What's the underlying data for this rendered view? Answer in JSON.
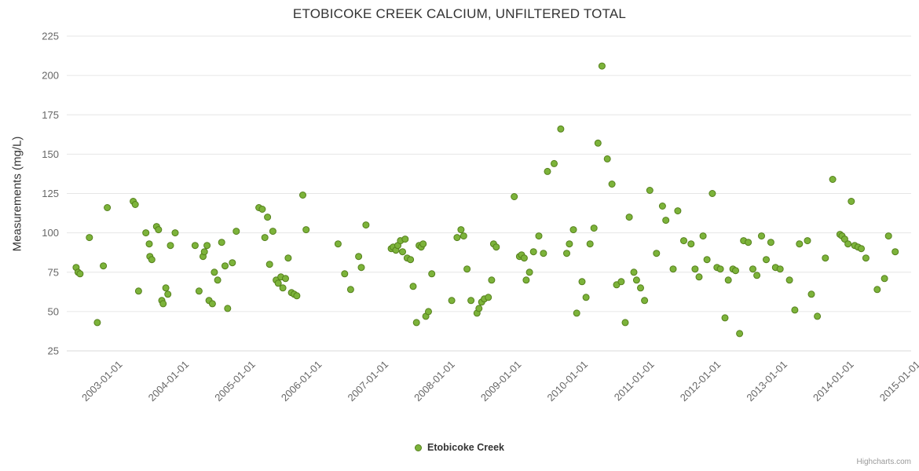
{
  "title": "ETOBICOKE CREEK CALCIUM, UNFILTERED TOTAL",
  "legend": {
    "label": "Etobicoke Creek",
    "marker_color": "#7cb33a",
    "marker_stroke": "#55801c"
  },
  "credits": "Highcharts.com",
  "colors": {
    "title": "#333333",
    "axis_label": "#666666",
    "gridline": "#e6e6e6",
    "axis_line": "#d8d8d8",
    "point_fill": "#7cb33a",
    "point_stroke": "#55801c"
  },
  "chart_data": {
    "type": "scatter",
    "title": "ETOBICOKE CREEK CALCIUM, UNFILTERED TOTAL",
    "xlabel": "",
    "ylabel": "Measurements (mg/L)",
    "ylim": [
      25,
      225
    ],
    "xlim": [
      2002.25,
      2014.95
    ],
    "grid": true,
    "legend_position": "bottom-center",
    "y_ticks": [
      225,
      200,
      175,
      150,
      125,
      100,
      75,
      50,
      25
    ],
    "x_tick_values": [
      2003,
      2004,
      2005,
      2006,
      2007,
      2008,
      2009,
      2010,
      2011,
      2012,
      2013,
      2014,
      2015
    ],
    "x_tick_labels": [
      "2003-01-01",
      "2004-01-01",
      "2005-01-01",
      "2006-01-01",
      "2007-01-01",
      "2008-01-01",
      "2009-01-01",
      "2010-01-01",
      "2011-01-01",
      "2012-01-01",
      "2013-01-01",
      "2014-01-01",
      "2015-01-01"
    ],
    "series": [
      {
        "name": "Etobicoke Creek",
        "color": "#7cb33a",
        "stroke": "#55801c",
        "points": [
          [
            2002.39,
            78
          ],
          [
            2002.42,
            75
          ],
          [
            2002.45,
            74
          ],
          [
            2002.59,
            97
          ],
          [
            2002.71,
            43
          ],
          [
            2002.8,
            79
          ],
          [
            2002.86,
            116
          ],
          [
            2003.25,
            120
          ],
          [
            2003.28,
            118
          ],
          [
            2003.33,
            63
          ],
          [
            2003.44,
            100
          ],
          [
            2003.49,
            93
          ],
          [
            2003.5,
            85
          ],
          [
            2003.53,
            83
          ],
          [
            2003.6,
            104
          ],
          [
            2003.63,
            102
          ],
          [
            2003.68,
            57
          ],
          [
            2003.7,
            55
          ],
          [
            2003.74,
            65
          ],
          [
            2003.77,
            61
          ],
          [
            2003.81,
            92
          ],
          [
            2003.88,
            100
          ],
          [
            2004.18,
            92
          ],
          [
            2004.24,
            63
          ],
          [
            2004.3,
            85
          ],
          [
            2004.32,
            88
          ],
          [
            2004.36,
            92
          ],
          [
            2004.39,
            57
          ],
          [
            2004.44,
            55
          ],
          [
            2004.47,
            75
          ],
          [
            2004.52,
            70
          ],
          [
            2004.58,
            94
          ],
          [
            2004.63,
            79
          ],
          [
            2004.67,
            52
          ],
          [
            2004.74,
            81
          ],
          [
            2004.8,
            101
          ],
          [
            2005.14,
            116
          ],
          [
            2005.19,
            115
          ],
          [
            2005.23,
            97
          ],
          [
            2005.27,
            110
          ],
          [
            2005.3,
            80
          ],
          [
            2005.35,
            101
          ],
          [
            2005.4,
            70
          ],
          [
            2005.43,
            68
          ],
          [
            2005.47,
            72
          ],
          [
            2005.5,
            65
          ],
          [
            2005.54,
            71
          ],
          [
            2005.58,
            84
          ],
          [
            2005.63,
            62
          ],
          [
            2005.67,
            61
          ],
          [
            2005.71,
            60
          ],
          [
            2005.8,
            124
          ],
          [
            2005.85,
            102
          ],
          [
            2006.33,
            93
          ],
          [
            2006.43,
            74
          ],
          [
            2006.52,
            64
          ],
          [
            2006.64,
            85
          ],
          [
            2006.68,
            78
          ],
          [
            2006.75,
            105
          ],
          [
            2007.13,
            90
          ],
          [
            2007.16,
            91
          ],
          [
            2007.2,
            89
          ],
          [
            2007.23,
            92
          ],
          [
            2007.27,
            95
          ],
          [
            2007.3,
            88
          ],
          [
            2007.34,
            96
          ],
          [
            2007.37,
            84
          ],
          [
            2007.42,
            83
          ],
          [
            2007.46,
            66
          ],
          [
            2007.51,
            43
          ],
          [
            2007.55,
            92
          ],
          [
            2007.58,
            91
          ],
          [
            2007.61,
            93
          ],
          [
            2007.65,
            47
          ],
          [
            2007.69,
            50
          ],
          [
            2007.74,
            74
          ],
          [
            2008.04,
            57
          ],
          [
            2008.12,
            97
          ],
          [
            2008.18,
            102
          ],
          [
            2008.22,
            98
          ],
          [
            2008.27,
            77
          ],
          [
            2008.33,
            57
          ],
          [
            2008.42,
            49
          ],
          [
            2008.45,
            52
          ],
          [
            2008.49,
            56
          ],
          [
            2008.53,
            58
          ],
          [
            2008.59,
            59
          ],
          [
            2008.64,
            70
          ],
          [
            2008.67,
            93
          ],
          [
            2008.71,
            91
          ],
          [
            2008.98,
            123
          ],
          [
            2009.06,
            85
          ],
          [
            2009.09,
            86
          ],
          [
            2009.13,
            84
          ],
          [
            2009.16,
            70
          ],
          [
            2009.21,
            75
          ],
          [
            2009.27,
            88
          ],
          [
            2009.35,
            98
          ],
          [
            2009.42,
            87
          ],
          [
            2009.48,
            139
          ],
          [
            2009.58,
            144
          ],
          [
            2009.68,
            166
          ],
          [
            2009.77,
            87
          ],
          [
            2009.81,
            93
          ],
          [
            2009.87,
            102
          ],
          [
            2009.92,
            49
          ],
          [
            2010.0,
            69
          ],
          [
            2010.06,
            59
          ],
          [
            2010.12,
            93
          ],
          [
            2010.18,
            103
          ],
          [
            2010.24,
            157
          ],
          [
            2010.3,
            206
          ],
          [
            2010.38,
            147
          ],
          [
            2010.45,
            131
          ],
          [
            2010.52,
            67
          ],
          [
            2010.59,
            69
          ],
          [
            2010.65,
            43
          ],
          [
            2010.71,
            110
          ],
          [
            2010.78,
            75
          ],
          [
            2010.82,
            70
          ],
          [
            2010.88,
            65
          ],
          [
            2010.94,
            57
          ],
          [
            2011.02,
            127
          ],
          [
            2011.12,
            87
          ],
          [
            2011.21,
            117
          ],
          [
            2011.26,
            108
          ],
          [
            2011.37,
            77
          ],
          [
            2011.44,
            114
          ],
          [
            2011.53,
            95
          ],
          [
            2011.64,
            93
          ],
          [
            2011.7,
            77
          ],
          [
            2011.76,
            72
          ],
          [
            2011.82,
            98
          ],
          [
            2011.88,
            83
          ],
          [
            2011.96,
            125
          ],
          [
            2012.03,
            78
          ],
          [
            2012.08,
            77
          ],
          [
            2012.15,
            46
          ],
          [
            2012.2,
            70
          ],
          [
            2012.27,
            77
          ],
          [
            2012.31,
            76
          ],
          [
            2012.37,
            36
          ],
          [
            2012.43,
            95
          ],
          [
            2012.5,
            94
          ],
          [
            2012.57,
            77
          ],
          [
            2012.63,
            73
          ],
          [
            2012.7,
            98
          ],
          [
            2012.77,
            83
          ],
          [
            2012.84,
            94
          ],
          [
            2012.91,
            78
          ],
          [
            2012.98,
            77
          ],
          [
            2013.12,
            70
          ],
          [
            2013.2,
            51
          ],
          [
            2013.27,
            93
          ],
          [
            2013.39,
            95
          ],
          [
            2013.45,
            61
          ],
          [
            2013.54,
            47
          ],
          [
            2013.66,
            84
          ],
          [
            2013.77,
            134
          ],
          [
            2013.88,
            99
          ],
          [
            2013.91,
            98
          ],
          [
            2013.95,
            96
          ],
          [
            2014.0,
            93
          ],
          [
            2014.05,
            120
          ],
          [
            2014.1,
            92
          ],
          [
            2014.15,
            91
          ],
          [
            2014.2,
            90
          ],
          [
            2014.27,
            84
          ],
          [
            2014.44,
            64
          ],
          [
            2014.55,
            71
          ],
          [
            2014.61,
            98
          ],
          [
            2014.71,
            88
          ]
        ]
      }
    ]
  }
}
